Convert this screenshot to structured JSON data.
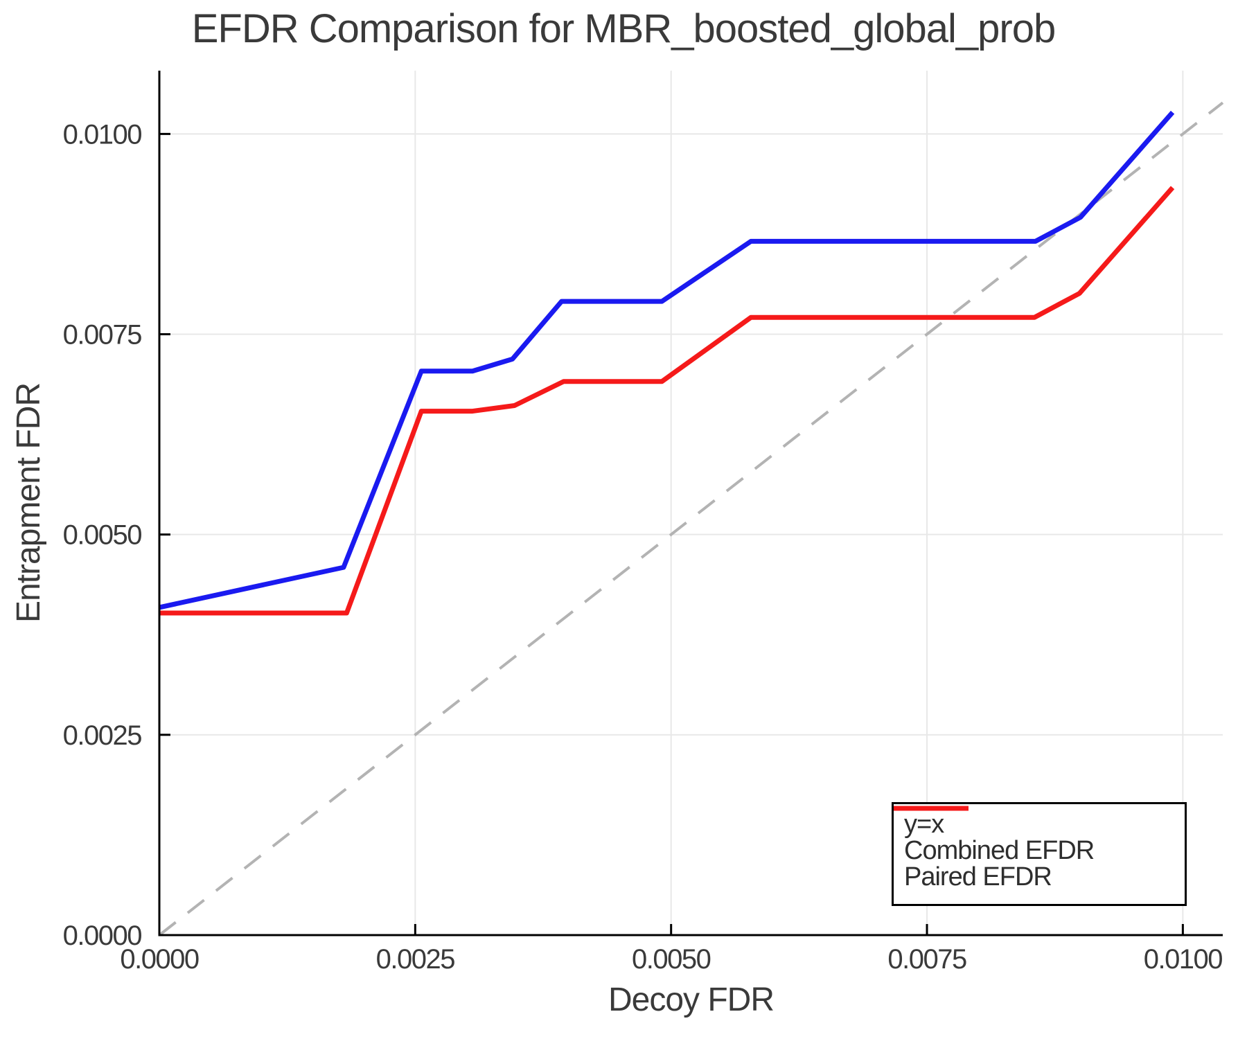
{
  "chart_data": {
    "type": "line",
    "title": "EFDR Comparison for MBR_boosted_global_prob",
    "xlabel": "Decoy FDR",
    "ylabel": "Entrapment FDR",
    "xlim": [
      0,
      0.01039
    ],
    "ylim": [
      0,
      0.01079
    ],
    "grid": true,
    "legend_position": "bottom-right",
    "x_ticks": {
      "values": [
        0.0,
        0.0025,
        0.005,
        0.0075,
        0.01
      ],
      "labels": [
        "0.0000",
        "0.0025",
        "0.0050",
        "0.0075",
        "0.0100"
      ]
    },
    "y_ticks": {
      "values": [
        0.0,
        0.0025,
        0.005,
        0.0075,
        0.01
      ],
      "labels": [
        "0.0000",
        "0.0025",
        "0.0050",
        "0.0075",
        "0.0100"
      ]
    },
    "series": [
      {
        "name": "y=x",
        "color": "#b3b3b3",
        "dash": true,
        "points": [
          [
            0.0,
            0.0
          ],
          [
            0.01039,
            0.01039
          ]
        ]
      },
      {
        "name": "Combined EFDR",
        "color": "#1a1af0",
        "dash": false,
        "points": [
          [
            0.0,
            0.00409
          ],
          [
            0.0018,
            0.00459
          ],
          [
            0.00256,
            0.00704
          ],
          [
            0.00306,
            0.00704
          ],
          [
            0.00345,
            0.00719
          ],
          [
            0.00393,
            0.00791
          ],
          [
            0.00491,
            0.00791
          ],
          [
            0.00578,
            0.00866
          ],
          [
            0.00856,
            0.00866
          ],
          [
            0.009,
            0.00896
          ],
          [
            0.0099,
            0.01027
          ]
        ]
      },
      {
        "name": "Paired EFDR",
        "color": "#f51a1a",
        "dash": false,
        "points": [
          [
            0.0,
            0.00402
          ],
          [
            0.00183,
            0.00402
          ],
          [
            0.00256,
            0.00654
          ],
          [
            0.00306,
            0.00654
          ],
          [
            0.00347,
            0.00661
          ],
          [
            0.00395,
            0.00691
          ],
          [
            0.00491,
            0.00691
          ],
          [
            0.00578,
            0.00771
          ],
          [
            0.00855,
            0.00771
          ],
          [
            0.00899,
            0.00801
          ],
          [
            0.0099,
            0.00933
          ]
        ]
      }
    ],
    "style": {
      "background": "#ffffff",
      "text_color": "#3a3a3a",
      "grid_color": "#e8e8e8",
      "axis_color": "#000000"
    }
  }
}
